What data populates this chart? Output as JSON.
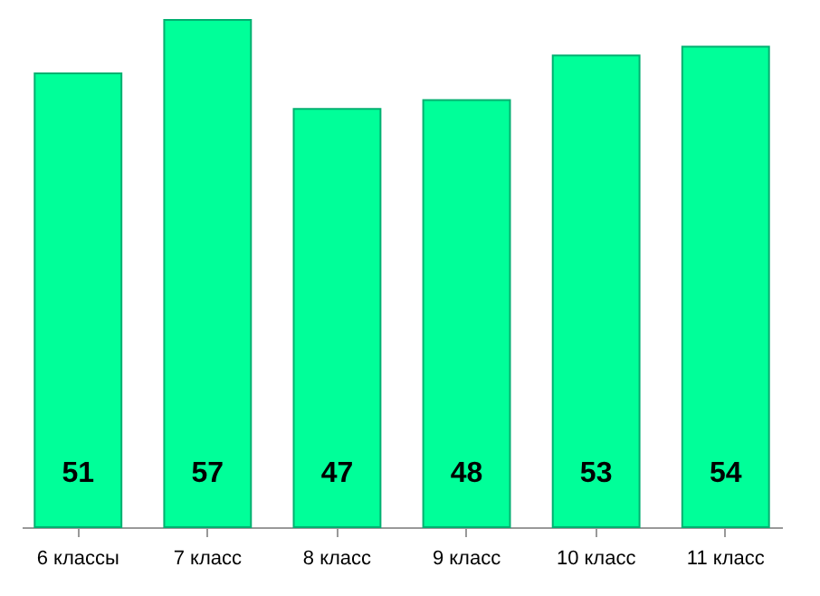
{
  "chart_data": {
    "type": "bar",
    "categories": [
      "6 классы",
      "7 класс",
      "8 класс",
      "9 класс",
      "10 класс",
      "11 класс"
    ],
    "values": [
      51,
      57,
      47,
      48,
      53,
      54
    ],
    "color": "#00ff99",
    "data_labels": true
  }
}
